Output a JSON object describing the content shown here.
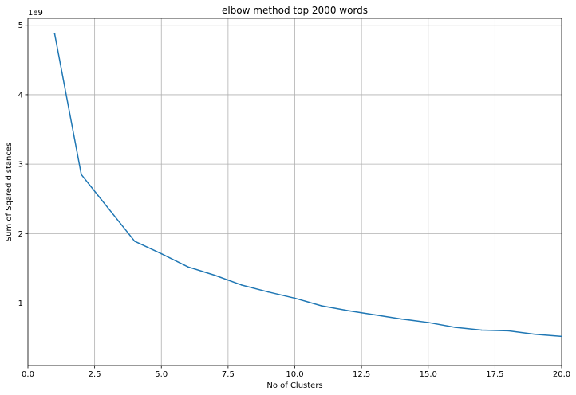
{
  "chart_data": {
    "type": "line",
    "title": "elbow method top 2000 words",
    "xlabel": "No of Clusters",
    "ylabel": "Sum of Sqared distances",
    "y_offset_label": "1e9",
    "xlim": [
      0,
      20
    ],
    "ylim": [
      0.1,
      5.1
    ],
    "y_scale_note": "values in units of 1e9",
    "grid": true,
    "x_ticks": [
      0.0,
      2.5,
      5.0,
      7.5,
      10.0,
      12.5,
      15.0,
      17.5,
      20.0
    ],
    "x_tick_labels": [
      "0.0",
      "2.5",
      "5.0",
      "7.5",
      "10.0",
      "12.5",
      "15.0",
      "17.5",
      "20.0"
    ],
    "y_ticks": [
      1,
      2,
      3,
      4,
      5
    ],
    "y_tick_labels": [
      "1",
      "2",
      "3",
      "4",
      "5"
    ],
    "line_color": "#1f77b4",
    "series": [
      {
        "x": [
          1,
          2,
          3,
          4,
          5,
          6,
          7,
          8,
          9,
          10,
          11,
          12,
          13,
          14,
          15,
          16,
          17,
          18,
          19,
          20
        ],
        "values": [
          4.88,
          2.85,
          2.37,
          1.89,
          1.71,
          1.52,
          1.4,
          1.26,
          1.16,
          1.07,
          0.96,
          0.89,
          0.83,
          0.77,
          0.72,
          0.65,
          0.61,
          0.6,
          0.55,
          0.52
        ]
      }
    ]
  }
}
